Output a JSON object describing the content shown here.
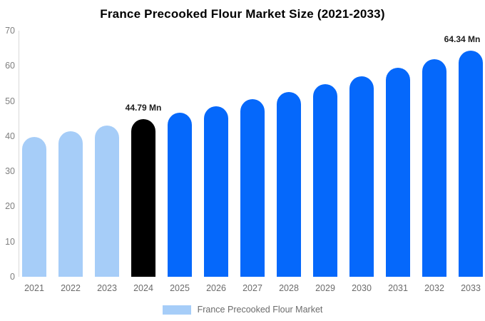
{
  "chart_data": {
    "type": "bar",
    "title": "France Precooked Flour Market Size (2021-2033)",
    "unit": "Mn",
    "categories": [
      "2021",
      "2022",
      "2023",
      "2024",
      "2025",
      "2026",
      "2027",
      "2028",
      "2029",
      "2030",
      "2031",
      "2032",
      "2033"
    ],
    "values": [
      39.7,
      41.33,
      43.02,
      44.79,
      46.63,
      48.55,
      50.54,
      52.62,
      54.78,
      57.03,
      59.38,
      61.82,
      64.34
    ],
    "bar_colors": [
      "#A6CDF8",
      "#A6CDF8",
      "#A6CDF8",
      "#000000",
      "#0568FB",
      "#0568FB",
      "#0568FB",
      "#0568FB",
      "#0568FB",
      "#0568FB",
      "#0568FB",
      "#0568FB",
      "#0568FB"
    ],
    "color_roles": {
      "historical": "#A6CDF8",
      "base_year": "#000000",
      "forecast": "#0568FB"
    },
    "annotations": [
      {
        "category": "2024",
        "text": "44.79 Mn"
      },
      {
        "category": "2033",
        "text": "64.34 Mn"
      }
    ],
    "xlabel": "",
    "ylabel": "",
    "ylim": [
      0,
      70
    ],
    "yticks": [
      0,
      10,
      20,
      30,
      40,
      50,
      60,
      70
    ],
    "grid": false,
    "legend": {
      "label": "France Precooked Flour Market",
      "position": "bottom"
    }
  }
}
